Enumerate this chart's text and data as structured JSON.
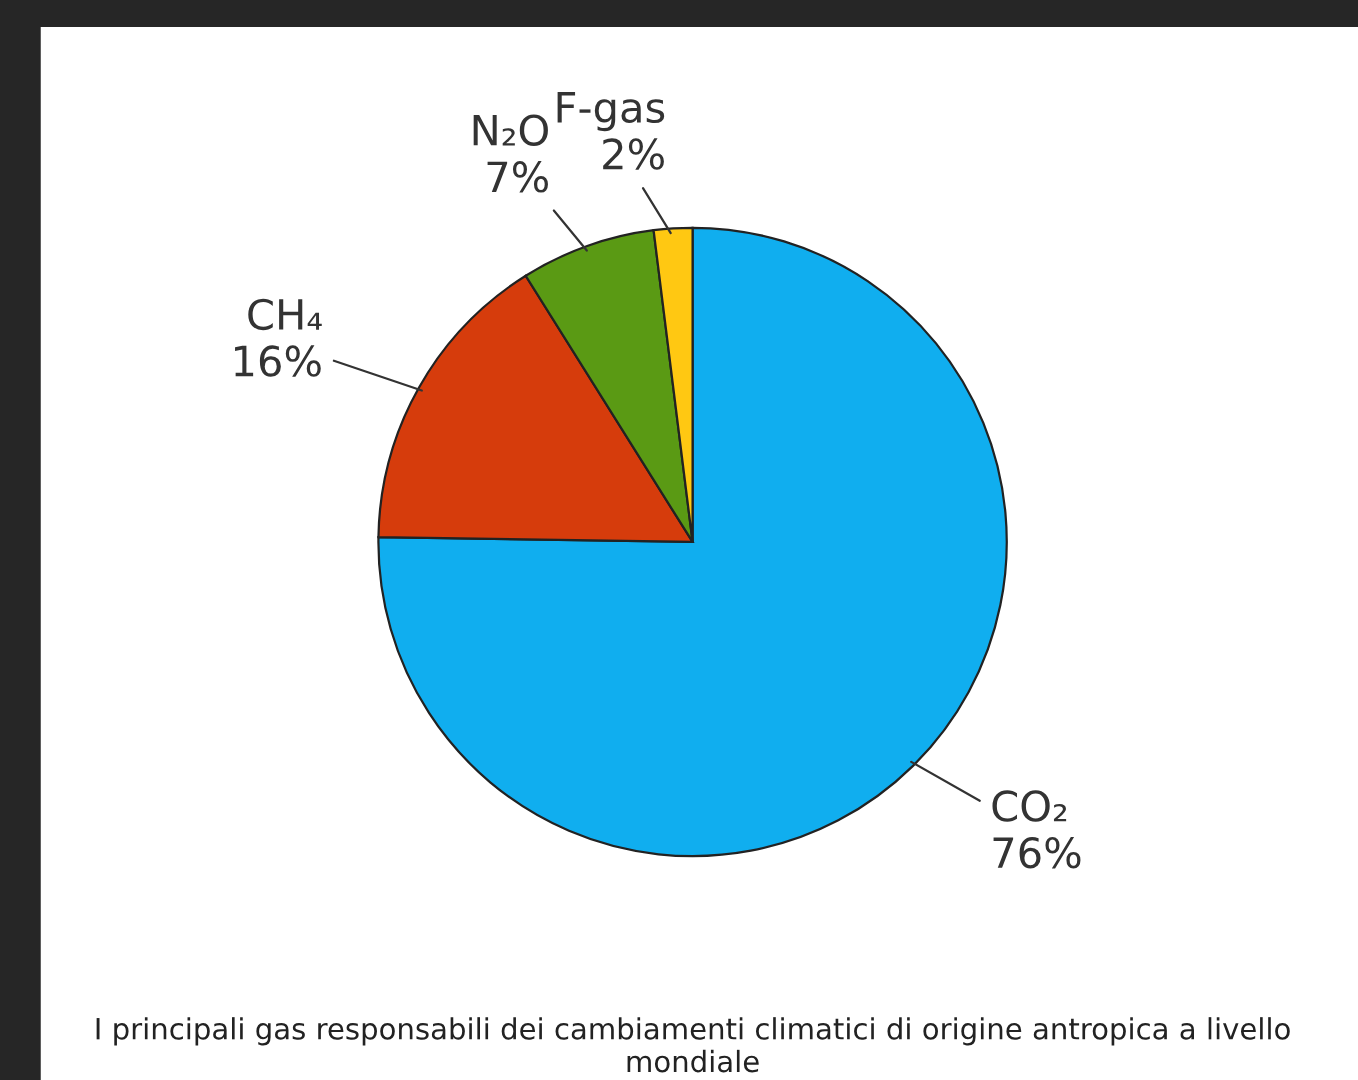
{
  "chart_data": {
    "type": "pie",
    "categories": [
      "CO₂",
      "CH₄",
      "N₂O",
      "F-gas"
    ],
    "values": [
      76,
      16,
      7,
      2
    ],
    "value_labels": [
      "76%",
      "16%",
      "7%",
      "2%"
    ],
    "colors": [
      "#10aeef",
      "#d63c0c",
      "#5a9a14",
      "#ffc812"
    ],
    "legend": false,
    "annotations": [
      "I principali gas responsabili dei cambiamenti climatici di origine antropica a livello mondiale"
    ]
  }
}
